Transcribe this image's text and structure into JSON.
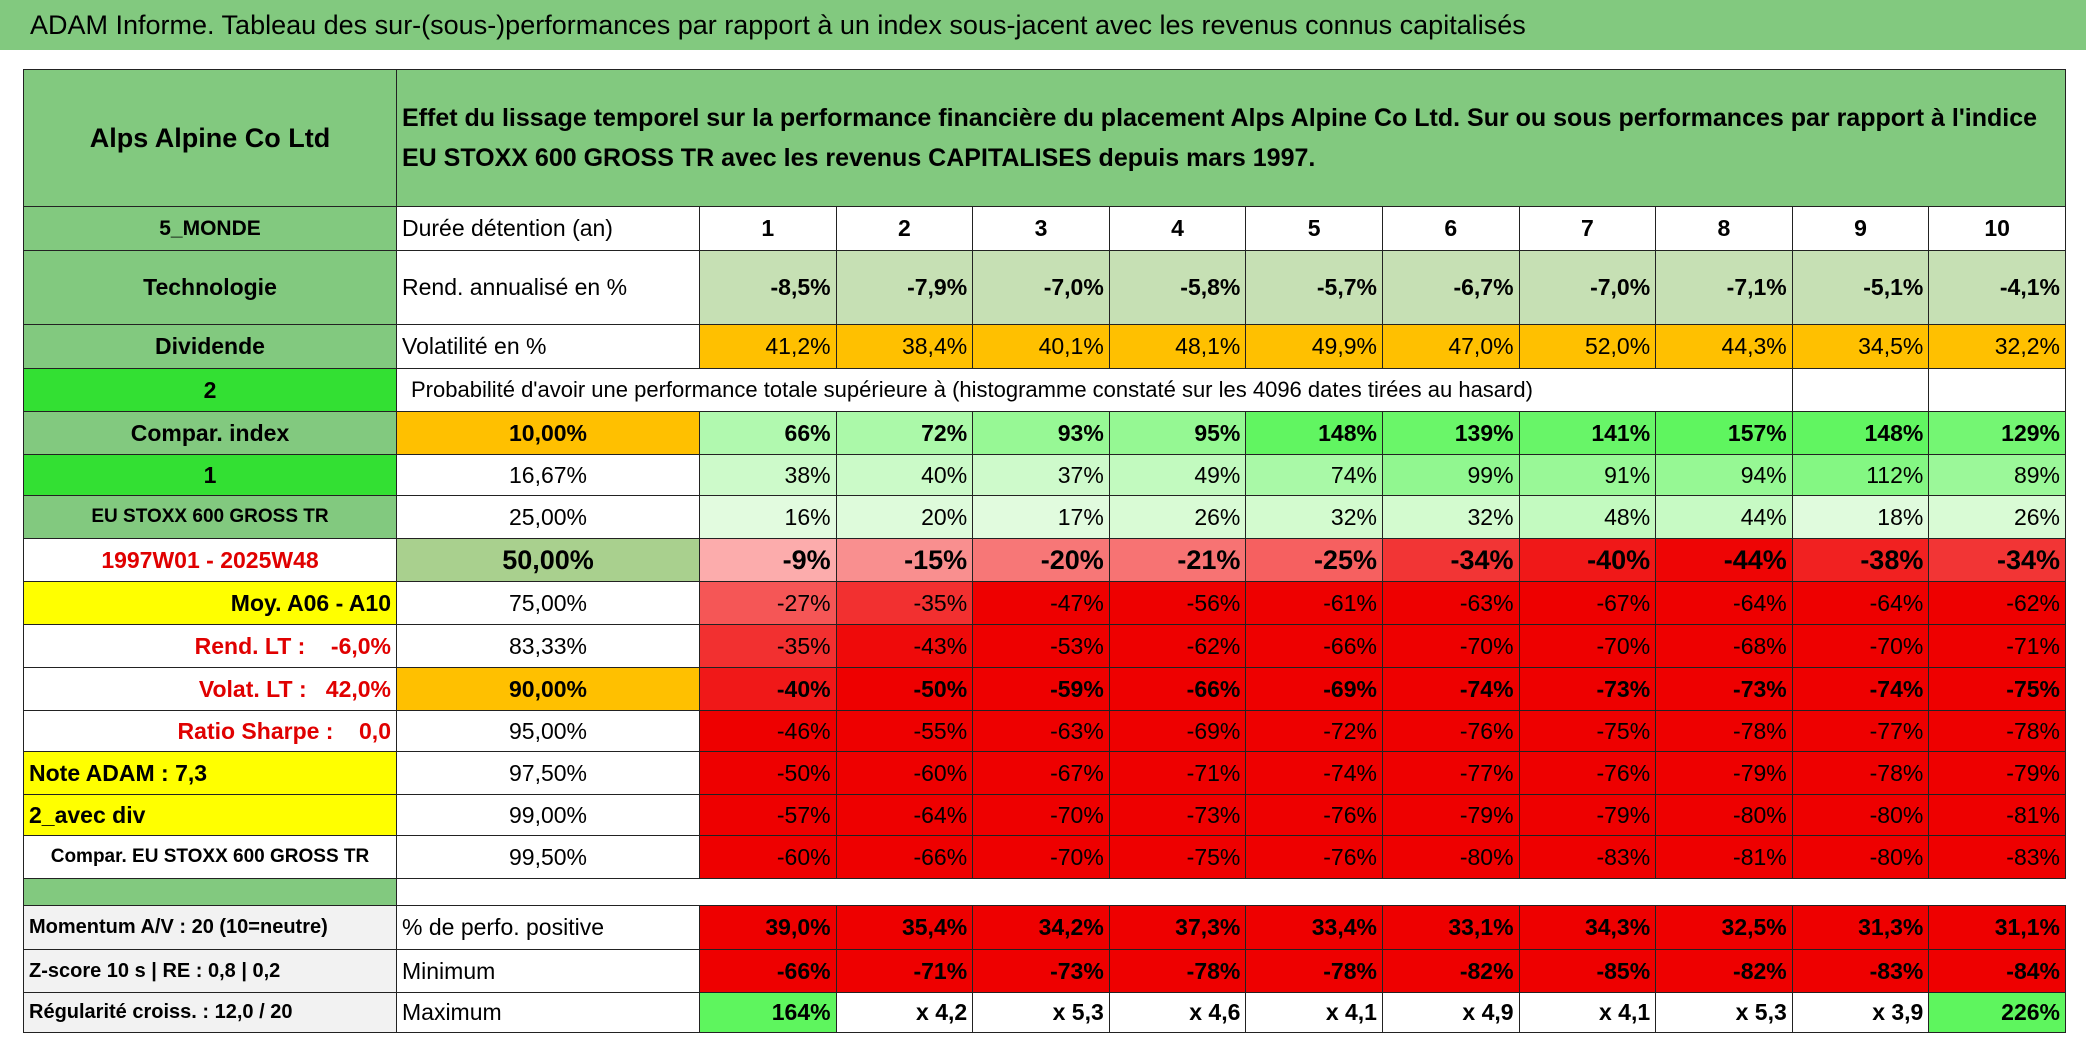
{
  "title": "ADAM Informe. Tableau des sur-(sous-)performances par rapport à un index sous-jacent avec les revenus connus capitalisés",
  "header": {
    "name": "Alps Alpine Co Ltd",
    "description": "Effet du lissage temporel sur la performance financière du placement Alps Alpine Co Ltd. Sur ou sous performances par rapport à l'indice EU STOXX 600 GROSS TR avec les revenus CAPITALISES depuis mars 1997."
  },
  "left": [
    "5_MONDE",
    "Technologie",
    "Dividende",
    "2",
    "Compar. index",
    "1",
    "EU STOXX 600 GROSS TR",
    "1997W01 - 2025W48",
    "Moy. A06 - A10",
    "Rend. LT :    -6,0%",
    "Volat. LT :   42,0%",
    "Ratio Sharpe :    0,0",
    "Note ADAM : 7,3",
    "2_avec div",
    "Compar. EU STOXX 600 GROSS TR"
  ],
  "holding": {
    "label": "Durée détention (an)",
    "years": [
      1,
      2,
      3,
      4,
      5,
      6,
      7,
      8,
      9,
      10
    ]
  },
  "returns": {
    "label": "Rend. annualisé en %",
    "values": [
      "-8,5%",
      "-7,9%",
      "-7,0%",
      "-5,8%",
      "-5,7%",
      "-6,7%",
      "-7,0%",
      "-7,1%",
      "-5,1%",
      "-4,1%"
    ]
  },
  "volatility": {
    "label": "Volatilité en %",
    "values": [
      "41,2%",
      "38,4%",
      "40,1%",
      "48,1%",
      "49,9%",
      "47,0%",
      "52,0%",
      "44,3%",
      "34,5%",
      "32,2%"
    ]
  },
  "probability": {
    "caption": "Probabilité d'avoir une performance totale supérieure à (histogramme constaté sur les 4096 dates tirées au hasard)",
    "rows": [
      {
        "threshold": "10,00%",
        "values": [
          "66%",
          "72%",
          "93%",
          "95%",
          "148%",
          "139%",
          "141%",
          "157%",
          "148%",
          "129%"
        ]
      },
      {
        "threshold": "16,67%",
        "values": [
          "38%",
          "40%",
          "37%",
          "49%",
          "74%",
          "99%",
          "91%",
          "94%",
          "112%",
          "89%"
        ]
      },
      {
        "threshold": "25,00%",
        "values": [
          "16%",
          "20%",
          "17%",
          "26%",
          "32%",
          "32%",
          "48%",
          "44%",
          "18%",
          "26%"
        ]
      },
      {
        "threshold": "50,00%",
        "values": [
          "-9%",
          "-15%",
          "-20%",
          "-21%",
          "-25%",
          "-34%",
          "-40%",
          "-44%",
          "-38%",
          "-34%"
        ]
      },
      {
        "threshold": "75,00%",
        "values": [
          "-27%",
          "-35%",
          "-47%",
          "-56%",
          "-61%",
          "-63%",
          "-67%",
          "-64%",
          "-64%",
          "-62%"
        ]
      },
      {
        "threshold": "83,33%",
        "values": [
          "-35%",
          "-43%",
          "-53%",
          "-62%",
          "-66%",
          "-70%",
          "-70%",
          "-68%",
          "-70%",
          "-71%"
        ]
      },
      {
        "threshold": "90,00%",
        "values": [
          "-40%",
          "-50%",
          "-59%",
          "-66%",
          "-69%",
          "-74%",
          "-73%",
          "-73%",
          "-74%",
          "-75%"
        ]
      },
      {
        "threshold": "95,00%",
        "values": [
          "-46%",
          "-55%",
          "-63%",
          "-69%",
          "-72%",
          "-76%",
          "-75%",
          "-78%",
          "-77%",
          "-78%"
        ]
      },
      {
        "threshold": "97,50%",
        "values": [
          "-50%",
          "-60%",
          "-67%",
          "-71%",
          "-74%",
          "-77%",
          "-76%",
          "-79%",
          "-78%",
          "-79%"
        ]
      },
      {
        "threshold": "99,00%",
        "values": [
          "-57%",
          "-64%",
          "-70%",
          "-73%",
          "-76%",
          "-79%",
          "-79%",
          "-80%",
          "-80%",
          "-81%"
        ]
      },
      {
        "threshold": "99,50%",
        "values": [
          "-60%",
          "-66%",
          "-70%",
          "-75%",
          "-76%",
          "-80%",
          "-83%",
          "-81%",
          "-80%",
          "-83%"
        ]
      }
    ]
  },
  "summary": [
    {
      "left": "Momentum A/V : 20 (10=neutre)",
      "label": "% de perfo. positive",
      "values": [
        "39,0%",
        "35,4%",
        "34,2%",
        "37,3%",
        "33,4%",
        "33,1%",
        "34,3%",
        "32,5%",
        "31,3%",
        "31,1%"
      ]
    },
    {
      "left": "Z-score 10 s | RE : 0,8 | 0,2",
      "label": "Minimum",
      "values": [
        "-66%",
        "-71%",
        "-73%",
        "-78%",
        "-78%",
        "-82%",
        "-85%",
        "-82%",
        "-83%",
        "-84%"
      ]
    },
    {
      "left": "Régularité croiss. : 12,0 / 20",
      "label": "Maximum",
      "values": [
        "164%",
        "x 4,2",
        "x 5,3",
        "x 4,6",
        "x 4,1",
        "x 4,9",
        "x 4,1",
        "x 5,3",
        "x 3,9",
        "226%"
      ]
    }
  ]
}
